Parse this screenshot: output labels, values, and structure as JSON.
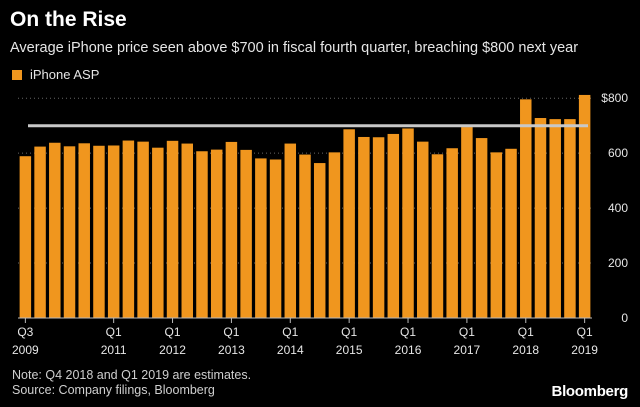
{
  "title": "On the Rise",
  "subtitle": "Average iPhone price seen above $700 in fiscal fourth quarter, breaching $800 next year",
  "note": "Note: Q4 2018 and Q1 2019 are estimates.",
  "source": "Source: Company filings, Bloomberg",
  "brand": "Bloomberg",
  "colors": {
    "bar": "#f0961e",
    "reference_line": "#c8c8c8",
    "grid": "#666666"
  },
  "chart_data": {
    "type": "bar",
    "series": [
      {
        "name": "iPhone ASP",
        "values": [
          589,
          624,
          638,
          625,
          636,
          627,
          628,
          646,
          642,
          620,
          645,
          635,
          607,
          613,
          641,
          612,
          581,
          577,
          635,
          595,
          564,
          603,
          687,
          659,
          658,
          670,
          690,
          642,
          596,
          618,
          695,
          655,
          603,
          616,
          796,
          728,
          724,
          724,
          812
        ]
      }
    ],
    "x_tick_labels": [
      {
        "index": 0,
        "quarter": "Q3",
        "year": "2009"
      },
      {
        "index": 6,
        "quarter": "Q1",
        "year": "2011"
      },
      {
        "index": 10,
        "quarter": "Q1",
        "year": "2012"
      },
      {
        "index": 14,
        "quarter": "Q1",
        "year": "2013"
      },
      {
        "index": 18,
        "quarter": "Q1",
        "year": "2014"
      },
      {
        "index": 22,
        "quarter": "Q1",
        "year": "2015"
      },
      {
        "index": 26,
        "quarter": "Q1",
        "year": "2016"
      },
      {
        "index": 30,
        "quarter": "Q1",
        "year": "2017"
      },
      {
        "index": 34,
        "quarter": "Q1",
        "year": "2018"
      },
      {
        "index": 38,
        "quarter": "Q1",
        "year": "2019"
      }
    ],
    "y_ticks": [
      {
        "value": 0,
        "label": "0"
      },
      {
        "value": 200,
        "label": "200"
      },
      {
        "value": 400,
        "label": "400"
      },
      {
        "value": 600,
        "label": "600"
      },
      {
        "value": 800,
        "label": "$800"
      }
    ],
    "reference_line": 700,
    "ylim": [
      0,
      830
    ],
    "grid": true,
    "legend_position": "top-left"
  }
}
